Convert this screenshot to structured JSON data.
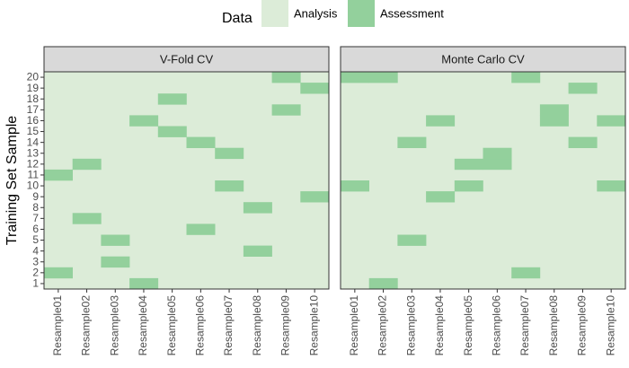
{
  "chart_data": {
    "type": "heatmap",
    "legend": {
      "title": "Data",
      "position": "top",
      "entries": [
        {
          "label": "Analysis",
          "color": "#dcecd8"
        },
        {
          "label": "Assessment",
          "color": "#93d09c"
        }
      ]
    },
    "ylabel": "Training Set Sample",
    "x_categories": [
      "Resample01",
      "Resample02",
      "Resample03",
      "Resample04",
      "Resample05",
      "Resample06",
      "Resample07",
      "Resample08",
      "Resample09",
      "Resample10"
    ],
    "y_categories": [
      "1",
      "2",
      "3",
      "4",
      "5",
      "6",
      "7",
      "8",
      "9",
      "10",
      "11",
      "12",
      "13",
      "14",
      "15",
      "16",
      "17",
      "18",
      "19",
      "20"
    ],
    "grid": false,
    "panels": [
      {
        "title": "V-Fold CV",
        "assessment": [
          {
            "resample": "Resample01",
            "samples": [
              2,
              11
            ]
          },
          {
            "resample": "Resample02",
            "samples": [
              7,
              12
            ]
          },
          {
            "resample": "Resample03",
            "samples": [
              3,
              5
            ]
          },
          {
            "resample": "Resample04",
            "samples": [
              1,
              16
            ]
          },
          {
            "resample": "Resample05",
            "samples": [
              15,
              18
            ]
          },
          {
            "resample": "Resample06",
            "samples": [
              6,
              14
            ]
          },
          {
            "resample": "Resample07",
            "samples": [
              10,
              13
            ]
          },
          {
            "resample": "Resample08",
            "samples": [
              4,
              8
            ]
          },
          {
            "resample": "Resample09",
            "samples": [
              17,
              20
            ]
          },
          {
            "resample": "Resample10",
            "samples": [
              9,
              19
            ]
          }
        ]
      },
      {
        "title": "Monte Carlo CV",
        "assessment": [
          {
            "resample": "Resample01",
            "samples": [
              10,
              20
            ]
          },
          {
            "resample": "Resample02",
            "samples": [
              1,
              20
            ]
          },
          {
            "resample": "Resample03",
            "samples": [
              5,
              14
            ]
          },
          {
            "resample": "Resample04",
            "samples": [
              9,
              16
            ]
          },
          {
            "resample": "Resample05",
            "samples": [
              10,
              12
            ]
          },
          {
            "resample": "Resample06",
            "samples": [
              12,
              13
            ]
          },
          {
            "resample": "Resample07",
            "samples": [
              2,
              20
            ]
          },
          {
            "resample": "Resample08",
            "samples": [
              16,
              17
            ]
          },
          {
            "resample": "Resample09",
            "samples": [
              14,
              19
            ]
          },
          {
            "resample": "Resample10",
            "samples": [
              10,
              16
            ]
          }
        ]
      }
    ]
  }
}
